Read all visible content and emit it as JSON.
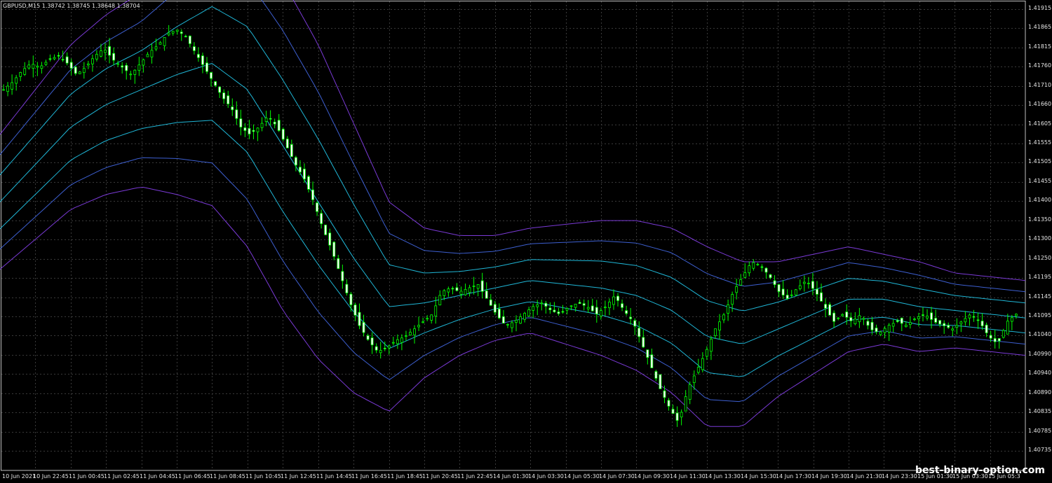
{
  "symbol_info": "GBPUSD,M15  1.38742 1.38745 1.38648 1.38704",
  "watermark": "best-binary-option.com",
  "colors": {
    "background": "#000000",
    "grid": "#3a3a3a",
    "bull_candle": "#00ff00",
    "bear_candle": "#ffffff",
    "wick": "#00ff00",
    "band_inner": "#1fb6d6",
    "band_middle": "#3d5fd0",
    "band_outer": "#7a3ad6"
  },
  "price_axis": {
    "labels": [
      "1.41915",
      "1.41865",
      "1.41815",
      "1.41760",
      "1.41710",
      "1.41660",
      "1.41605",
      "1.41555",
      "1.41505",
      "1.41455",
      "1.41400",
      "1.41350",
      "1.41300",
      "1.41250",
      "1.41195",
      "1.41145",
      "1.41095",
      "1.41040",
      "1.40990",
      "1.40940",
      "1.40890",
      "1.40835",
      "1.40785",
      "1.40735"
    ]
  },
  "time_axis": {
    "labels": [
      "10 Jun 2021",
      "10 Jun 22:45",
      "11 Jun 00:45",
      "11 Jun 02:45",
      "11 Jun 04:45",
      "11 Jun 06:45",
      "11 Jun 08:45",
      "11 Jun 10:45",
      "11 Jun 12:45",
      "11 Jun 14:45",
      "11 Jun 16:45",
      "11 Jun 18:45",
      "11 Jun 20:45",
      "11 Jun 22:45",
      "14 Jun 01:30",
      "14 Jun 03:30",
      "14 Jun 05:30",
      "14 Jun 07:30",
      "14 Jun 09:30",
      "14 Jun 11:30",
      "14 Jun 13:30",
      "14 Jun 15:30",
      "14 Jun 17:30",
      "14 Jun 19:30",
      "14 Jun 21:30",
      "14 Jun 23:30",
      "15 Jun 01:30",
      "15 Jun 03:30",
      "15 Jun 05:3"
    ]
  },
  "chart_data": {
    "type": "candlestick",
    "series": [
      {
        "name": "price",
        "points": [
          1.417,
          1.4172,
          1.4175,
          1.4177,
          1.4176,
          1.4178,
          1.4179,
          1.4177,
          1.4174,
          1.4176,
          1.4179,
          1.4181,
          1.4178,
          1.4176,
          1.4174,
          1.4177,
          1.418,
          1.4182,
          1.4185,
          1.4186,
          1.4184,
          1.418,
          1.4176,
          1.4172,
          1.4168,
          1.4165,
          1.416,
          1.4158,
          1.416,
          1.4163,
          1.416,
          1.4155,
          1.415,
          1.4146,
          1.414,
          1.4133,
          1.4127,
          1.412,
          1.4113,
          1.4107,
          1.4103,
          1.41,
          1.4101,
          1.4103,
          1.4104,
          1.4106,
          1.4108,
          1.411,
          1.4116,
          1.4117,
          1.4116,
          1.4117,
          1.4118,
          1.4114,
          1.411,
          1.4107,
          1.4108,
          1.411,
          1.4112,
          1.4113,
          1.4111,
          1.411,
          1.4112,
          1.4113,
          1.4112,
          1.411,
          1.4112,
          1.4115,
          1.4111,
          1.4108,
          1.4102,
          1.4096,
          1.409,
          1.4085,
          1.4081,
          1.409,
          1.4095,
          1.41,
          1.4106,
          1.411,
          1.4116,
          1.412,
          1.4124,
          1.4123,
          1.412,
          1.4116,
          1.4114,
          1.4117,
          1.4119,
          1.4116,
          1.4112,
          1.4108,
          1.411,
          1.4108,
          1.411,
          1.4106,
          1.4105,
          1.4107,
          1.4108,
          1.4107,
          1.4109,
          1.411,
          1.4108,
          1.4107,
          1.4106,
          1.4108,
          1.411,
          1.4108,
          1.4104,
          1.4102,
          1.4108,
          1.411
        ]
      },
      {
        "name": "band_middle",
        "points": [
          1.414,
          1.415,
          1.416,
          1.4166,
          1.417,
          1.4174,
          1.4177,
          1.417,
          1.4155,
          1.414,
          1.4125,
          1.4112,
          1.4113,
          1.4115,
          1.4117,
          1.4119,
          1.4118,
          1.4117,
          1.4115,
          1.4111,
          1.4104,
          1.4102,
          1.4106,
          1.411,
          1.4114,
          1.4114,
          1.4112,
          1.4111,
          1.411,
          1.4109
        ]
      }
    ]
  }
}
